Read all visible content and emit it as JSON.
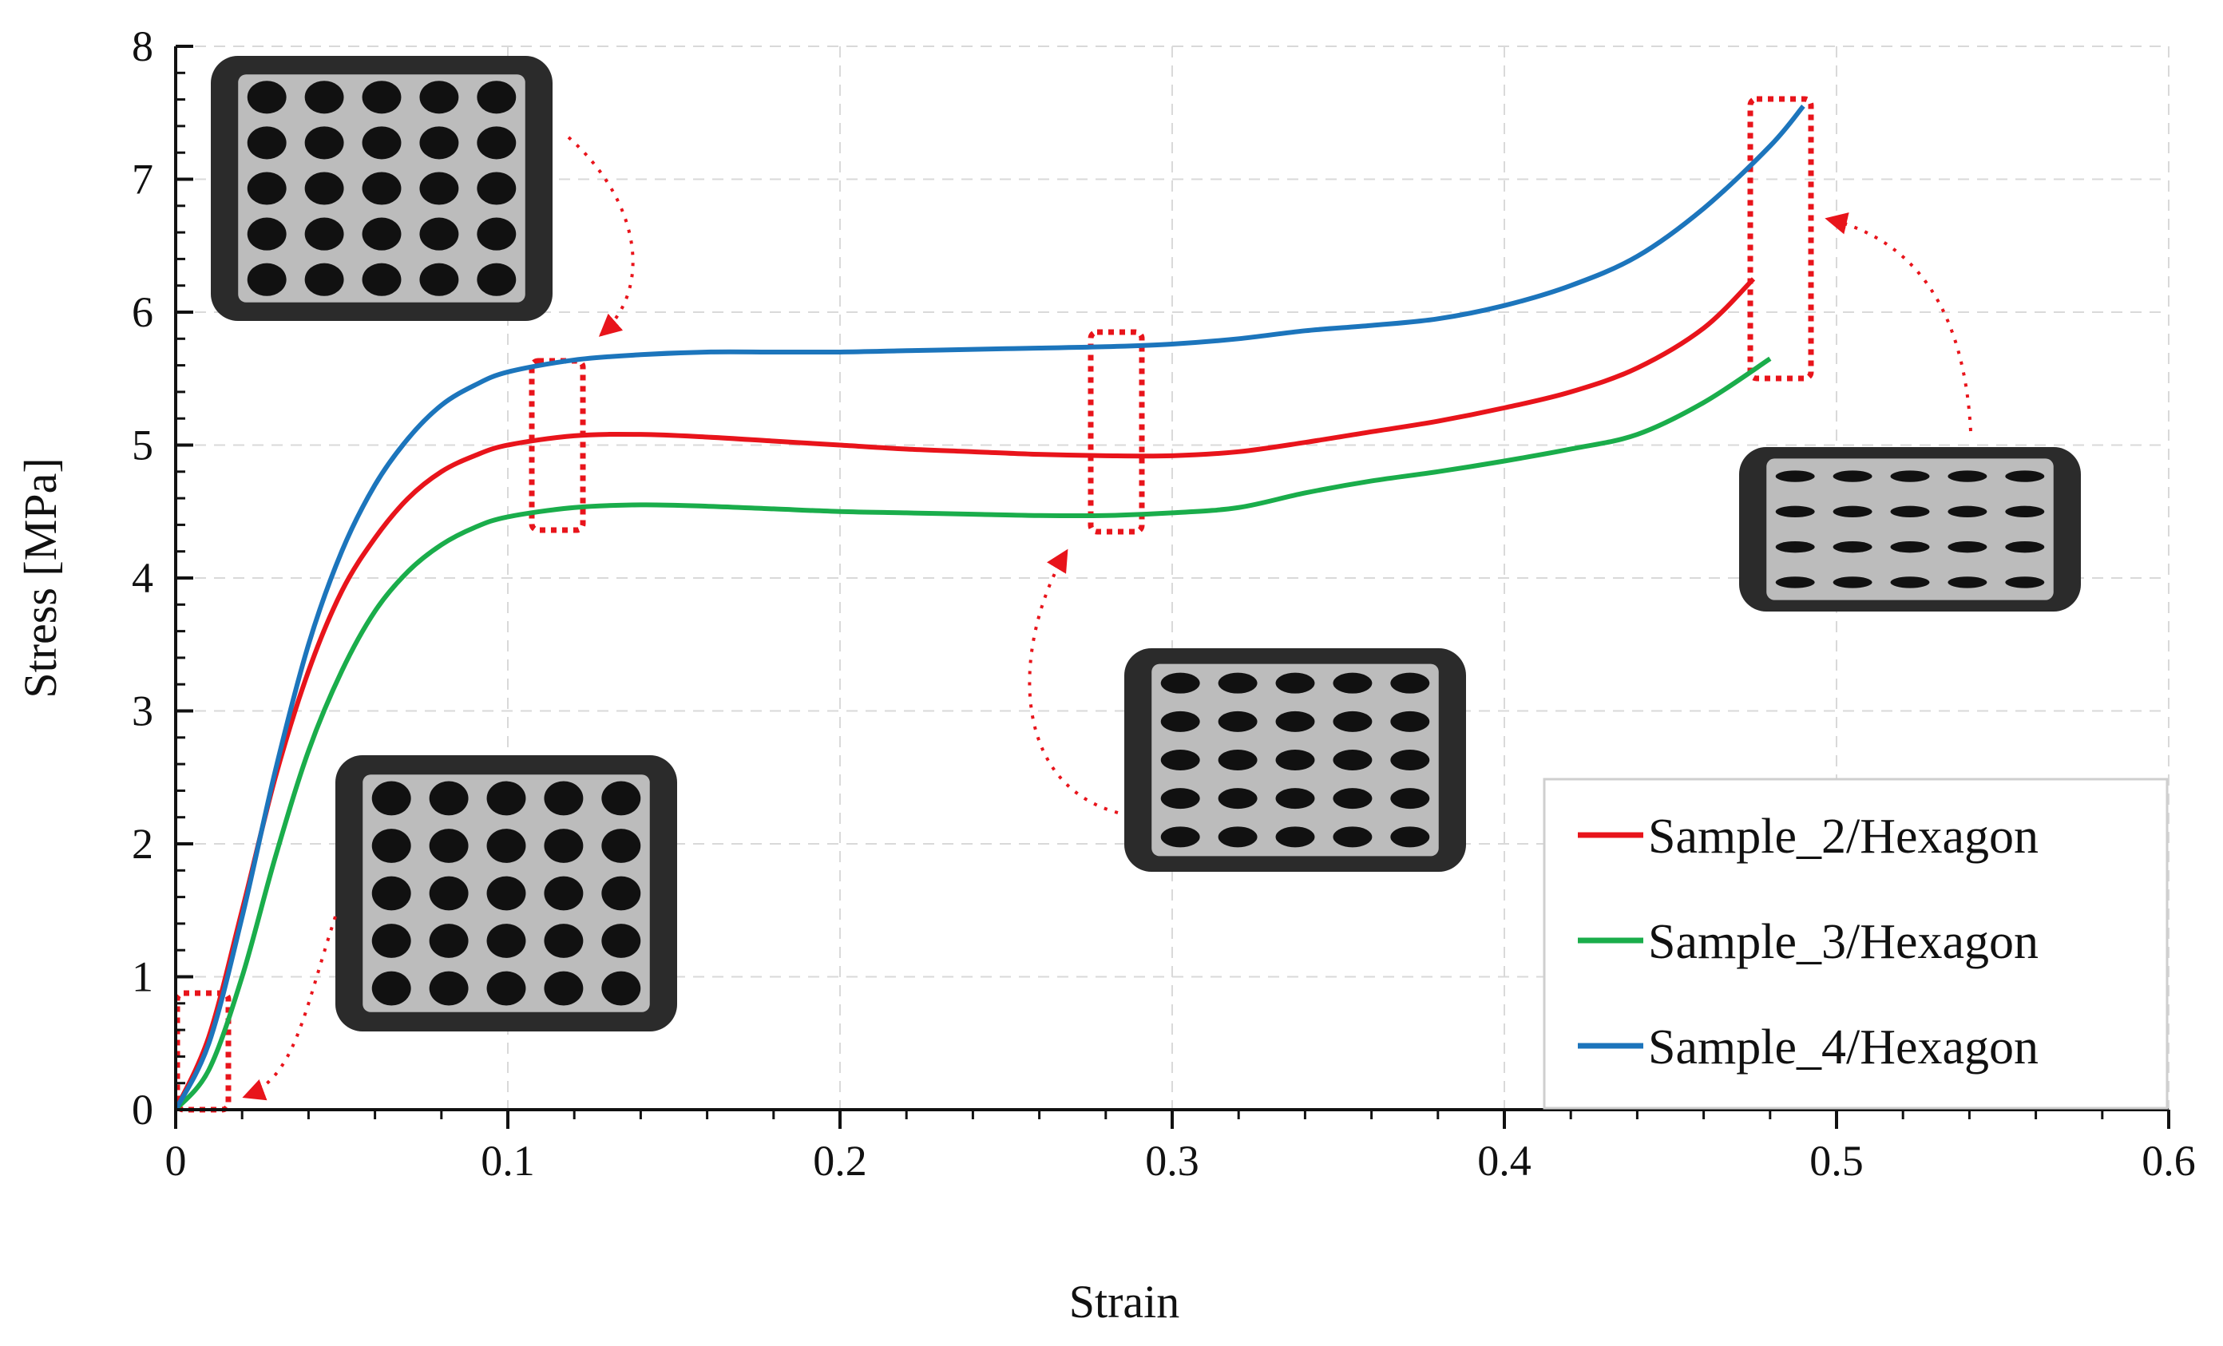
{
  "chart_data": {
    "type": "line",
    "title": "",
    "xlabel": "Strain",
    "ylabel": "Stress [MPa]",
    "xlim": [
      0,
      0.6
    ],
    "ylim": [
      0,
      8
    ],
    "x_ticks": [
      "0",
      "0.1",
      "0.2",
      "0.3",
      "0.4",
      "0.5",
      "0.6"
    ],
    "y_ticks": [
      "0",
      "1",
      "2",
      "3",
      "4",
      "5",
      "6",
      "7",
      "8"
    ],
    "grid": true,
    "legend_position": "bottom-right",
    "series": [
      {
        "name": "Sample_2/Hexagon",
        "color": "#e8141b",
        "points": [
          [
            0,
            0
          ],
          [
            0.01,
            0.55
          ],
          [
            0.02,
            1.5
          ],
          [
            0.03,
            2.5
          ],
          [
            0.04,
            3.3
          ],
          [
            0.05,
            3.9
          ],
          [
            0.06,
            4.3
          ],
          [
            0.07,
            4.6
          ],
          [
            0.08,
            4.8
          ],
          [
            0.09,
            4.92
          ],
          [
            0.1,
            5.0
          ],
          [
            0.12,
            5.07
          ],
          [
            0.14,
            5.08
          ],
          [
            0.16,
            5.06
          ],
          [
            0.18,
            5.03
          ],
          [
            0.2,
            5.0
          ],
          [
            0.22,
            4.97
          ],
          [
            0.24,
            4.95
          ],
          [
            0.26,
            4.93
          ],
          [
            0.28,
            4.92
          ],
          [
            0.3,
            4.92
          ],
          [
            0.32,
            4.95
          ],
          [
            0.34,
            5.02
          ],
          [
            0.36,
            5.1
          ],
          [
            0.38,
            5.18
          ],
          [
            0.4,
            5.28
          ],
          [
            0.42,
            5.4
          ],
          [
            0.44,
            5.58
          ],
          [
            0.46,
            5.88
          ],
          [
            0.475,
            6.25
          ]
        ]
      },
      {
        "name": "Sample_3/Hexagon",
        "color": "#1aad4b",
        "points": [
          [
            0,
            0
          ],
          [
            0.01,
            0.3
          ],
          [
            0.02,
            1.0
          ],
          [
            0.03,
            1.9
          ],
          [
            0.04,
            2.7
          ],
          [
            0.05,
            3.3
          ],
          [
            0.06,
            3.75
          ],
          [
            0.07,
            4.05
          ],
          [
            0.08,
            4.25
          ],
          [
            0.09,
            4.38
          ],
          [
            0.1,
            4.46
          ],
          [
            0.12,
            4.53
          ],
          [
            0.14,
            4.55
          ],
          [
            0.16,
            4.54
          ],
          [
            0.18,
            4.52
          ],
          [
            0.2,
            4.5
          ],
          [
            0.22,
            4.49
          ],
          [
            0.24,
            4.48
          ],
          [
            0.26,
            4.47
          ],
          [
            0.28,
            4.47
          ],
          [
            0.3,
            4.49
          ],
          [
            0.32,
            4.53
          ],
          [
            0.34,
            4.64
          ],
          [
            0.36,
            4.73
          ],
          [
            0.38,
            4.8
          ],
          [
            0.4,
            4.88
          ],
          [
            0.42,
            4.97
          ],
          [
            0.44,
            5.08
          ],
          [
            0.46,
            5.32
          ],
          [
            0.48,
            5.65
          ]
        ]
      },
      {
        "name": "Sample_4/Hexagon",
        "color": "#1c75bc",
        "points": [
          [
            0,
            0
          ],
          [
            0.01,
            0.5
          ],
          [
            0.02,
            1.45
          ],
          [
            0.03,
            2.55
          ],
          [
            0.04,
            3.5
          ],
          [
            0.05,
            4.2
          ],
          [
            0.06,
            4.7
          ],
          [
            0.07,
            5.05
          ],
          [
            0.08,
            5.3
          ],
          [
            0.09,
            5.45
          ],
          [
            0.1,
            5.55
          ],
          [
            0.12,
            5.64
          ],
          [
            0.14,
            5.68
          ],
          [
            0.16,
            5.7
          ],
          [
            0.18,
            5.7
          ],
          [
            0.2,
            5.7
          ],
          [
            0.22,
            5.71
          ],
          [
            0.24,
            5.72
          ],
          [
            0.26,
            5.73
          ],
          [
            0.28,
            5.74
          ],
          [
            0.3,
            5.76
          ],
          [
            0.32,
            5.8
          ],
          [
            0.34,
            5.86
          ],
          [
            0.36,
            5.9
          ],
          [
            0.38,
            5.95
          ],
          [
            0.4,
            6.05
          ],
          [
            0.42,
            6.2
          ],
          [
            0.44,
            6.42
          ],
          [
            0.46,
            6.78
          ],
          [
            0.48,
            7.25
          ],
          [
            0.49,
            7.55
          ]
        ]
      }
    ]
  }
}
